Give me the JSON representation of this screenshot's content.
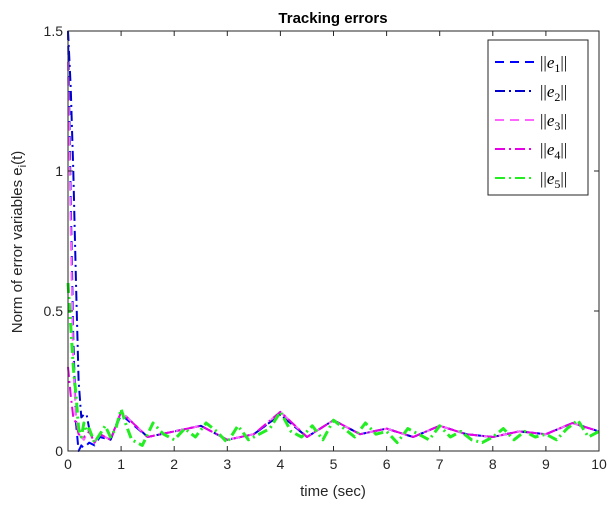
{
  "chart_data": {
    "type": "line",
    "title": "Tracking errors",
    "xlabel": "time (sec)",
    "ylabel_main": "Norm of error variables e",
    "ylabel_sub": "i",
    "ylabel_tail": "(t)",
    "xlim": [
      0,
      10
    ],
    "ylim": [
      0,
      1.5
    ],
    "x_ticks": [
      0,
      1,
      2,
      3,
      4,
      5,
      6,
      7,
      8,
      9,
      10
    ],
    "y_ticks": [
      0,
      0.5,
      1,
      1.5
    ],
    "y_tick_labels": [
      "0",
      "0.5",
      "1",
      "1.5"
    ],
    "grid": false,
    "legend_position": "top-right",
    "series": [
      {
        "name": "||e1||",
        "legend_base": "e",
        "legend_sub": "1",
        "color": "#0000ff",
        "dash": "9,6",
        "x": [
          0,
          0.05,
          0.1,
          0.15,
          0.2,
          0.25,
          0.3,
          0.4,
          0.5,
          0.6,
          0.8,
          1.0,
          1.5,
          2.0,
          2.5,
          3.0,
          3.5,
          4.0,
          4.5,
          5.0,
          5.5,
          6.0,
          6.5,
          7.0,
          7.5,
          8.0,
          8.5,
          9.0,
          9.5,
          10.0
        ],
        "y": [
          1.5,
          0.9,
          0.4,
          0.1,
          0.0,
          0.02,
          0.01,
          0.03,
          0.02,
          0.05,
          0.04,
          0.13,
          0.05,
          0.07,
          0.09,
          0.04,
          0.06,
          0.13,
          0.05,
          0.11,
          0.06,
          0.08,
          0.05,
          0.09,
          0.06,
          0.05,
          0.07,
          0.06,
          0.1,
          0.07
        ]
      },
      {
        "name": "||e2||",
        "legend_base": "e",
        "legend_sub": "2",
        "color": "#0000cd",
        "dash": "10,4,2,4",
        "x": [
          0,
          0.05,
          0.1,
          0.15,
          0.2,
          0.25,
          0.3,
          0.35,
          0.4,
          0.5,
          0.6,
          0.8,
          1.0,
          1.5,
          2.0,
          2.5,
          3.0,
          3.5,
          4.0,
          4.5,
          5.0,
          5.5,
          6.0,
          6.5,
          7.0,
          7.5,
          8.0,
          8.5,
          9.0,
          9.5,
          10.0
        ],
        "y": [
          1.5,
          1.3,
          1.0,
          0.6,
          0.25,
          0.12,
          0.13,
          0.13,
          0.08,
          0.03,
          0.06,
          0.04,
          0.14,
          0.05,
          0.07,
          0.09,
          0.04,
          0.06,
          0.13,
          0.05,
          0.11,
          0.06,
          0.08,
          0.05,
          0.09,
          0.06,
          0.05,
          0.07,
          0.06,
          0.1,
          0.07
        ]
      },
      {
        "name": "||e3||",
        "legend_base": "e",
        "legend_sub": "3",
        "color": "#ff66ff",
        "dash": "9,6",
        "x": [
          0,
          0.05,
          0.1,
          0.15,
          0.2,
          0.3,
          0.4,
          0.5,
          0.6,
          0.8,
          1.0,
          1.5,
          2.0,
          2.5,
          3.0,
          3.5,
          4.0,
          4.5,
          5.0,
          5.5,
          6.0,
          6.5,
          7.0,
          7.5,
          8.0,
          8.5,
          9.0,
          9.5,
          10.0
        ],
        "y": [
          1.39,
          0.8,
          0.3,
          0.12,
          0.06,
          0.04,
          0.08,
          0.03,
          0.06,
          0.04,
          0.14,
          0.05,
          0.07,
          0.09,
          0.04,
          0.06,
          0.14,
          0.05,
          0.11,
          0.06,
          0.08,
          0.05,
          0.09,
          0.06,
          0.05,
          0.07,
          0.06,
          0.1,
          0.07
        ]
      },
      {
        "name": "||e4||",
        "legend_base": "e",
        "legend_sub": "4",
        "color": "#e600e6",
        "dash": "10,4,2,4",
        "x": [
          0,
          0.05,
          0.1,
          0.15,
          0.2,
          0.3,
          0.4,
          0.5,
          0.6,
          0.8,
          1.0,
          1.5,
          2.0,
          2.5,
          3.0,
          3.5,
          4.0,
          4.5,
          5.0,
          5.5,
          6.0,
          6.5,
          7.0,
          7.5,
          8.0,
          8.5,
          9.0,
          9.5,
          10.0
        ],
        "y": [
          0.3,
          0.2,
          0.12,
          0.1,
          0.06,
          0.05,
          0.07,
          0.03,
          0.06,
          0.04,
          0.14,
          0.05,
          0.07,
          0.09,
          0.04,
          0.06,
          0.14,
          0.05,
          0.11,
          0.06,
          0.08,
          0.05,
          0.09,
          0.06,
          0.05,
          0.07,
          0.06,
          0.1,
          0.07
        ]
      },
      {
        "name": "||e5||",
        "legend_base": "e",
        "legend_sub": "5",
        "color": "#22ee22",
        "dash": "10,4,2,4",
        "x": [
          0,
          0.05,
          0.1,
          0.15,
          0.2,
          0.25,
          0.3,
          0.35,
          0.4,
          0.5,
          0.6,
          0.7,
          0.8,
          0.9,
          1.0,
          1.1,
          1.2,
          1.4,
          1.6,
          1.8,
          2.0,
          2.2,
          2.4,
          2.6,
          2.8,
          3.0,
          3.2,
          3.4,
          3.6,
          3.8,
          4.0,
          4.2,
          4.4,
          4.6,
          4.8,
          5.0,
          5.2,
          5.4,
          5.6,
          5.8,
          6.0,
          6.2,
          6.4,
          6.6,
          6.8,
          7.0,
          7.2,
          7.4,
          7.6,
          7.8,
          8.0,
          8.2,
          8.4,
          8.6,
          8.8,
          9.0,
          9.2,
          9.4,
          9.6,
          9.8,
          10.0
        ],
        "y": [
          0.6,
          0.45,
          0.3,
          0.2,
          0.08,
          0.05,
          0.1,
          0.07,
          0.08,
          0.03,
          0.06,
          0.09,
          0.05,
          0.08,
          0.15,
          0.09,
          0.04,
          0.02,
          0.1,
          0.06,
          0.04,
          0.08,
          0.05,
          0.1,
          0.07,
          0.03,
          0.09,
          0.04,
          0.06,
          0.08,
          0.14,
          0.07,
          0.05,
          0.09,
          0.04,
          0.11,
          0.08,
          0.05,
          0.1,
          0.06,
          0.07,
          0.03,
          0.08,
          0.06,
          0.04,
          0.09,
          0.05,
          0.07,
          0.04,
          0.03,
          0.05,
          0.08,
          0.04,
          0.07,
          0.05,
          0.06,
          0.04,
          0.08,
          0.11,
          0.05,
          0.07
        ]
      }
    ]
  }
}
